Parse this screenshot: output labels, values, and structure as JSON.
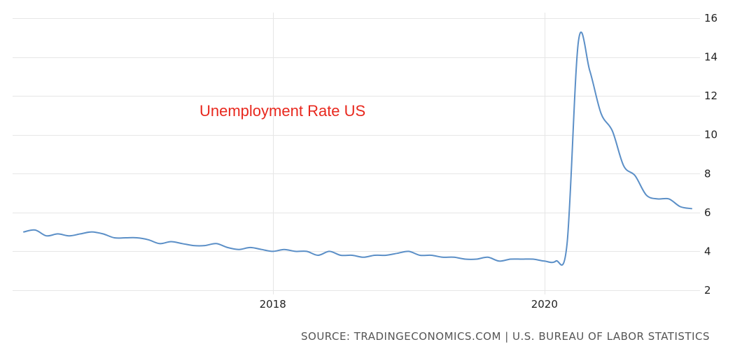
{
  "chart_data": {
    "type": "line",
    "annotation": "Unemployment Rate US",
    "source": "SOURCE: TRADINGECONOMICS.COM | U.S. BUREAU OF LABOR STATISTICS",
    "x_range": [
      "2016-03",
      "2021-02"
    ],
    "x_ticks": [
      {
        "date": "2018-01",
        "label": "2018"
      },
      {
        "date": "2020-01",
        "label": "2020"
      }
    ],
    "ylim": [
      2,
      16
    ],
    "y_ticks": [
      2,
      4,
      6,
      8,
      10,
      12,
      14,
      16
    ],
    "y_axis_side": "right",
    "grid": true,
    "colors": {
      "line": "#5b8fc7",
      "annotation": "#e8281e",
      "source": "#555555"
    },
    "series": [
      {
        "dates": [
          "2016-03",
          "2016-04",
          "2016-05",
          "2016-06",
          "2016-07",
          "2016-08",
          "2016-09",
          "2016-10",
          "2016-11",
          "2016-12",
          "2017-01",
          "2017-02",
          "2017-03",
          "2017-04",
          "2017-05",
          "2017-06",
          "2017-07",
          "2017-08",
          "2017-09",
          "2017-10",
          "2017-11",
          "2017-12",
          "2018-01",
          "2018-02",
          "2018-03",
          "2018-04",
          "2018-05",
          "2018-06",
          "2018-07",
          "2018-08",
          "2018-09",
          "2018-10",
          "2018-11",
          "2018-12",
          "2019-01",
          "2019-02",
          "2019-03",
          "2019-04",
          "2019-05",
          "2019-06",
          "2019-07",
          "2019-08",
          "2019-09",
          "2019-10",
          "2019-11",
          "2019-12",
          "2020-01",
          "2020-02",
          "2020-03",
          "2020-04",
          "2020-05",
          "2020-06",
          "2020-07",
          "2020-08",
          "2020-09",
          "2020-10",
          "2020-11",
          "2020-12",
          "2021-01",
          "2021-02"
        ],
        "values": [
          5.0,
          5.1,
          4.8,
          4.9,
          4.8,
          4.9,
          5.0,
          4.9,
          4.7,
          4.7,
          4.7,
          4.6,
          4.4,
          4.5,
          4.4,
          4.3,
          4.3,
          4.4,
          4.2,
          4.1,
          4.2,
          4.1,
          4.0,
          4.1,
          4.0,
          4.0,
          3.8,
          4.0,
          3.8,
          3.8,
          3.7,
          3.8,
          3.8,
          3.9,
          4.0,
          3.8,
          3.8,
          3.7,
          3.7,
          3.6,
          3.6,
          3.7,
          3.5,
          3.6,
          3.6,
          3.6,
          3.5,
          3.5,
          4.4,
          14.8,
          13.3,
          11.1,
          10.2,
          8.4,
          7.9,
          6.9,
          6.7,
          6.7,
          6.3,
          6.2
        ]
      }
    ]
  }
}
